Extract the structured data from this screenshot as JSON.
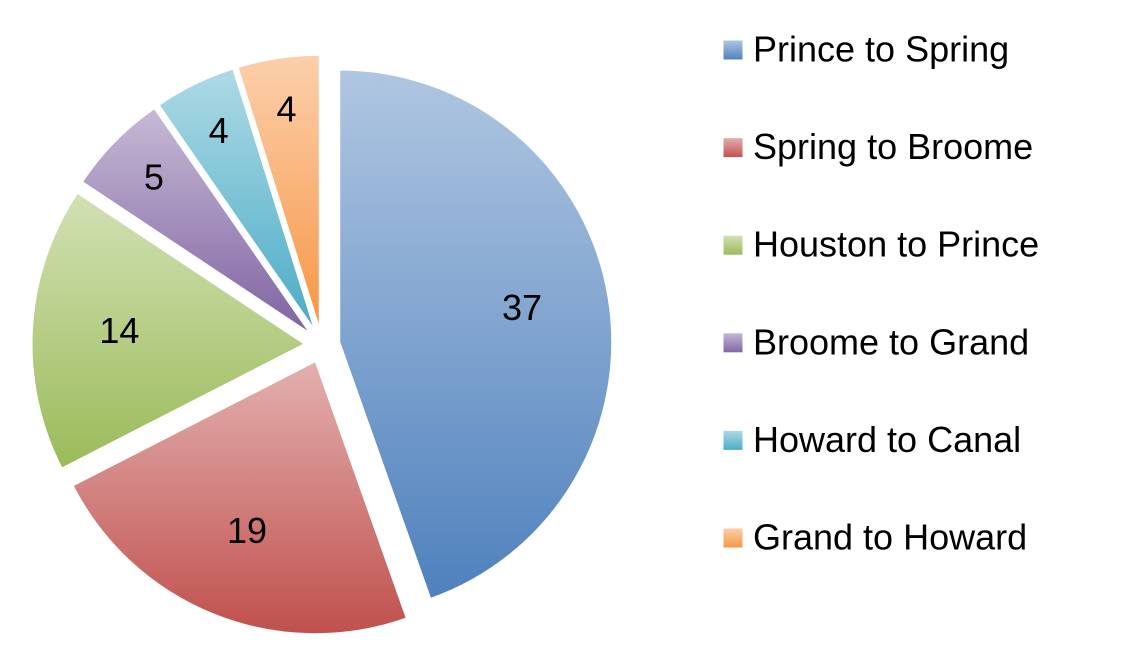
{
  "chart_data": {
    "type": "pie",
    "categories": [
      "Prince to Spring",
      "Spring to Broome",
      "Houston to Prince",
      "Broome to Grand",
      "Howard to Canal",
      "Grand to Howard"
    ],
    "values": [
      37,
      19,
      14,
      5,
      4,
      4
    ],
    "colors": [
      "#4f81bd",
      "#c0504d",
      "#9bbb59",
      "#8064a2",
      "#4bacc6",
      "#f79646"
    ],
    "exploded": true,
    "legend": "right"
  }
}
